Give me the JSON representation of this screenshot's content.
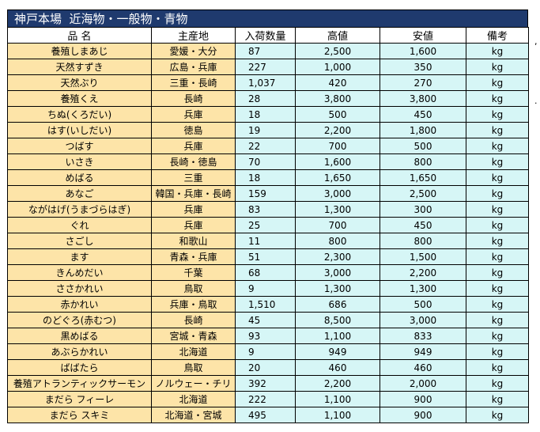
{
  "title": "神戸本場  近海物・一般物・青物",
  "headers": [
    "品 名",
    "主産地",
    "入荷数量",
    "高値",
    "安値",
    "備考"
  ],
  "rows": [
    {
      "name": "養殖しまあじ",
      "origin": "愛媛・大分",
      "volume": "87",
      "high": "2,500",
      "low": "1,600",
      "unit": "kg"
    },
    {
      "name": "天然すずき",
      "origin": "広島・兵庫",
      "volume": "227",
      "high": "1,000",
      "low": "350",
      "unit": "kg"
    },
    {
      "name": "天然ぶり",
      "origin": "三重・長崎",
      "volume": "1,037",
      "high": "420",
      "low": "270",
      "unit": "kg"
    },
    {
      "name": "養殖くえ",
      "origin": "長崎",
      "volume": "28",
      "high": "3,800",
      "low": "3,800",
      "unit": "kg"
    },
    {
      "name": "ちぬ(くろだい)",
      "origin": "兵庫",
      "volume": "18",
      "high": "500",
      "low": "450",
      "unit": "kg"
    },
    {
      "name": "はす(いしだい)",
      "origin": "徳島",
      "volume": "19",
      "high": "2,200",
      "low": "1,800",
      "unit": "kg"
    },
    {
      "name": "つばす",
      "origin": "兵庫",
      "volume": "22",
      "high": "700",
      "low": "500",
      "unit": "kg"
    },
    {
      "name": "いさき",
      "origin": "長崎・徳島",
      "volume": "70",
      "high": "1,600",
      "low": "800",
      "unit": "kg"
    },
    {
      "name": "めばる",
      "origin": "三重",
      "volume": "18",
      "high": "1,650",
      "low": "1,650",
      "unit": "kg"
    },
    {
      "name": "あなご",
      "origin": "韓国・兵庫・長崎",
      "volume": "159",
      "high": "3,000",
      "low": "2,500",
      "unit": "kg"
    },
    {
      "name": "ながはげ(うまづらはぎ)",
      "origin": "兵庫",
      "volume": "83",
      "high": "1,300",
      "low": "300",
      "unit": "kg"
    },
    {
      "name": "ぐれ",
      "origin": "兵庫",
      "volume": "25",
      "high": "700",
      "low": "450",
      "unit": "kg"
    },
    {
      "name": "さごし",
      "origin": "和歌山",
      "volume": "11",
      "high": "800",
      "low": "800",
      "unit": "kg"
    },
    {
      "name": "ます",
      "origin": "青森・兵庫",
      "volume": "51",
      "high": "2,300",
      "low": "1,500",
      "unit": "kg"
    },
    {
      "name": "きんめだい",
      "origin": "千葉",
      "volume": "68",
      "high": "3,000",
      "low": "2,200",
      "unit": "kg"
    },
    {
      "name": "ささかれい",
      "origin": "鳥取",
      "volume": "9",
      "high": "1,300",
      "low": "1,300",
      "unit": "kg"
    },
    {
      "name": "赤かれい",
      "origin": "兵庫・鳥取",
      "volume": "1,510",
      "high": "686",
      "low": "500",
      "unit": "kg"
    },
    {
      "name": "のどぐろ(赤むつ)",
      "origin": "長崎",
      "volume": "45",
      "high": "8,500",
      "low": "3,000",
      "unit": "kg"
    },
    {
      "name": "黒めばる",
      "origin": "宮城・青森",
      "volume": "93",
      "high": "1,100",
      "low": "833",
      "unit": "kg"
    },
    {
      "name": "あぶらかれい",
      "origin": "北海道",
      "volume": "9",
      "high": "949",
      "low": "949",
      "unit": "kg"
    },
    {
      "name": "ばばたら",
      "origin": "鳥取",
      "volume": "20",
      "high": "460",
      "low": "460",
      "unit": "kg"
    },
    {
      "name": "養殖アトランティックサーモン",
      "origin": "ノルウェー・チリ",
      "volume": "392",
      "high": "2,200",
      "low": "2,000",
      "unit": "kg"
    },
    {
      "name": "まだら フィーレ",
      "origin": "北海道",
      "volume": "222",
      "high": "1,100",
      "low": "900",
      "unit": "kg"
    },
    {
      "name": "まだら スキミ",
      "origin": "北海道・宮城",
      "volume": "495",
      "high": "1,100",
      "low": "900",
      "unit": "kg"
    }
  ]
}
